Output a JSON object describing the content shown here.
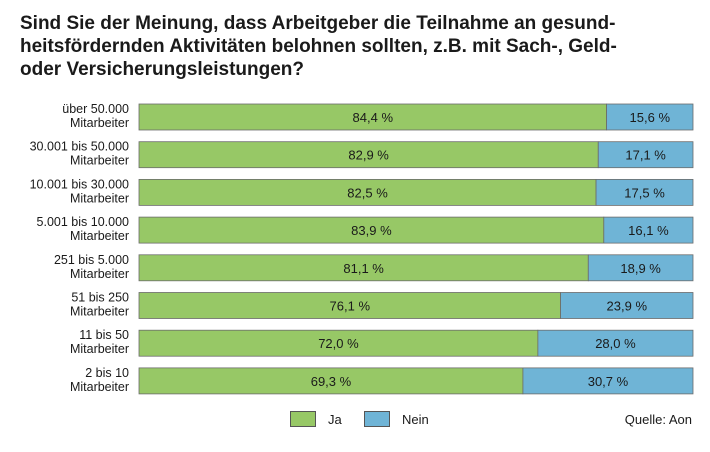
{
  "title_lines": [
    "Sind Sie der Meinung, dass Arbeitgeber die Teilnahme an gesund-",
    "heitsfördernden Aktivitäten belohnen sollten, z.B. mit Sach-, Geld-",
    "oder Versicherungsleistungen?"
  ],
  "source": "Quelle: Aon",
  "chart_data": {
    "type": "bar",
    "orientation": "horizontal",
    "stacked": true,
    "title": "Sind Sie der Meinung, dass Arbeitgeber die Teilnahme an gesundheitsfördernden Aktivitäten belohnen sollten, z.B. mit Sach-, Geld- oder Versicherungsleistungen?",
    "categories": [
      [
        "über 50.000",
        "Mitarbeiter"
      ],
      [
        "30.001 bis 50.000",
        "Mitarbeiter"
      ],
      [
        "10.001 bis 30.000",
        "Mitarbeiter"
      ],
      [
        "5.001 bis 10.000",
        "Mitarbeiter"
      ],
      [
        "251 bis  5.000",
        "Mitarbeiter"
      ],
      [
        "51 bis 250",
        "Mitarbeiter"
      ],
      [
        "11 bis 50",
        "Mitarbeiter"
      ],
      [
        "2 bis 10",
        "Mitarbeiter"
      ]
    ],
    "series": [
      {
        "name": "Ja",
        "color": "#97c866",
        "values": [
          84.4,
          82.9,
          82.5,
          83.9,
          81.1,
          76.1,
          72.0,
          69.3
        ],
        "labels": [
          "84,4 %",
          "82,9 %",
          "82,5 %",
          "83,9 %",
          "81,1 %",
          "76,1 %",
          "72,0 %",
          "69,3 %"
        ]
      },
      {
        "name": "Nein",
        "color": "#6fb4d6",
        "values": [
          15.6,
          17.1,
          17.5,
          16.1,
          18.9,
          23.9,
          28.0,
          30.7
        ],
        "labels": [
          "15,6 %",
          "17,1 %",
          "17,5 %",
          "16,1 %",
          "18,9 %",
          "23,9 %",
          "28,0 %",
          "30,7 %"
        ]
      }
    ],
    "xlim": [
      0,
      100
    ],
    "grid": false,
    "legend": "bottom-center"
  }
}
